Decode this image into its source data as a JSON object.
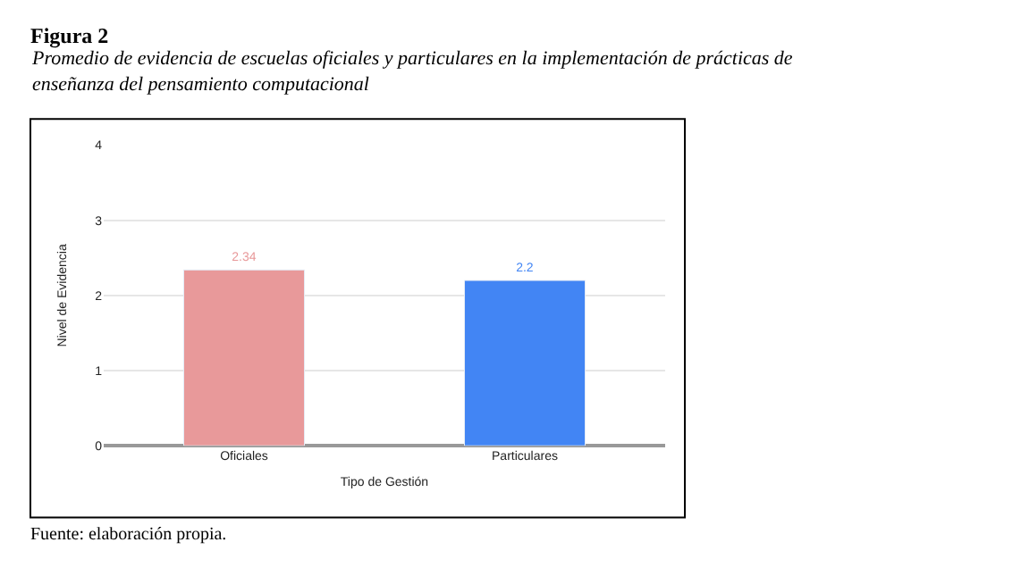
{
  "chart_data": {
    "type": "bar",
    "title": "Figura 2",
    "subtitle": "Promedio de evidencia de escuelas oficiales y particulares en la implementación de prácticas de enseñanza del pensamiento computacional",
    "xlabel": "Tipo de Gestión",
    "ylabel": "Nivel de Evidencia",
    "categories": [
      "Oficiales",
      "Particulares"
    ],
    "values": [
      2.34,
      2.2
    ],
    "colors": [
      "#e8999a",
      "#4285f4"
    ],
    "data_labels": true,
    "ylim": [
      0,
      4
    ],
    "yticks": [
      0,
      1,
      2,
      3,
      4
    ],
    "grid": "y",
    "legend": false,
    "annotations": [
      "Fuente: elaboración propia."
    ]
  }
}
